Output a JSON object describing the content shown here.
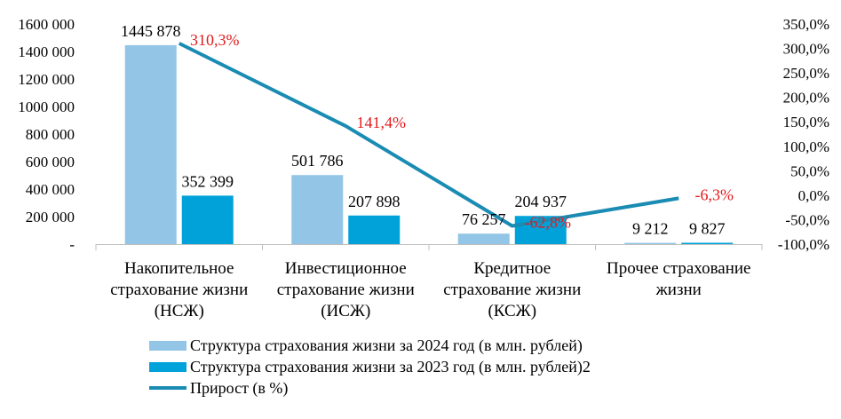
{
  "chart_data": {
    "type": "bar",
    "categories": [
      [
        "Накопительное",
        "страхование жизни",
        "(НСЖ)"
      ],
      [
        "Инвестиционное",
        "страхование жизни",
        "(ИСЖ)"
      ],
      [
        "Кредитное",
        "страхование жизни",
        "(КСЖ)"
      ],
      [
        "Прочее страхование",
        "жизни"
      ]
    ],
    "series": [
      {
        "name": "Структура страхования жизни за 2024 год (в млн. рублей)",
        "kind": "bar",
        "axis": "left",
        "color": "#92c5e6",
        "values": [
          1445878,
          501786,
          76257,
          9212
        ],
        "labels": [
          "1445 878",
          "501 786",
          "76 257",
          "9 212"
        ]
      },
      {
        "name": "Структура страхования жизни за 2023 год (в млн. рублей)2",
        "kind": "bar",
        "axis": "left",
        "color": "#00a2d9",
        "values": [
          352399,
          207898,
          204937,
          9827
        ],
        "labels": [
          "352 399",
          "207 898",
          "204 937",
          "9 827"
        ]
      },
      {
        "name": "Прирост (в %)",
        "kind": "line",
        "axis": "right",
        "color": "#1a8bb3",
        "values": [
          310.3,
          141.4,
          -62.8,
          -6.3
        ],
        "labels": [
          "310,3%",
          "141,4%",
          "-62,8%",
          "-6,3%"
        ],
        "label_color": "#e31a1c"
      }
    ],
    "y_left": {
      "range": [
        0,
        1600000
      ],
      "ticks": [
        "-",
        "200 000",
        "400 000",
        "600 000",
        "800 000",
        "1000 000",
        "1200 000",
        "1400 000",
        "1600 000"
      ]
    },
    "y_right": {
      "range": [
        -100,
        350
      ],
      "ticks": [
        "-100,0%",
        "-50,0%",
        "0,0%",
        "50,0%",
        "100,0%",
        "150,0%",
        "200,0%",
        "250,0%",
        "300,0%",
        "350,0%"
      ]
    },
    "grid": false,
    "legend_position": "bottom"
  }
}
